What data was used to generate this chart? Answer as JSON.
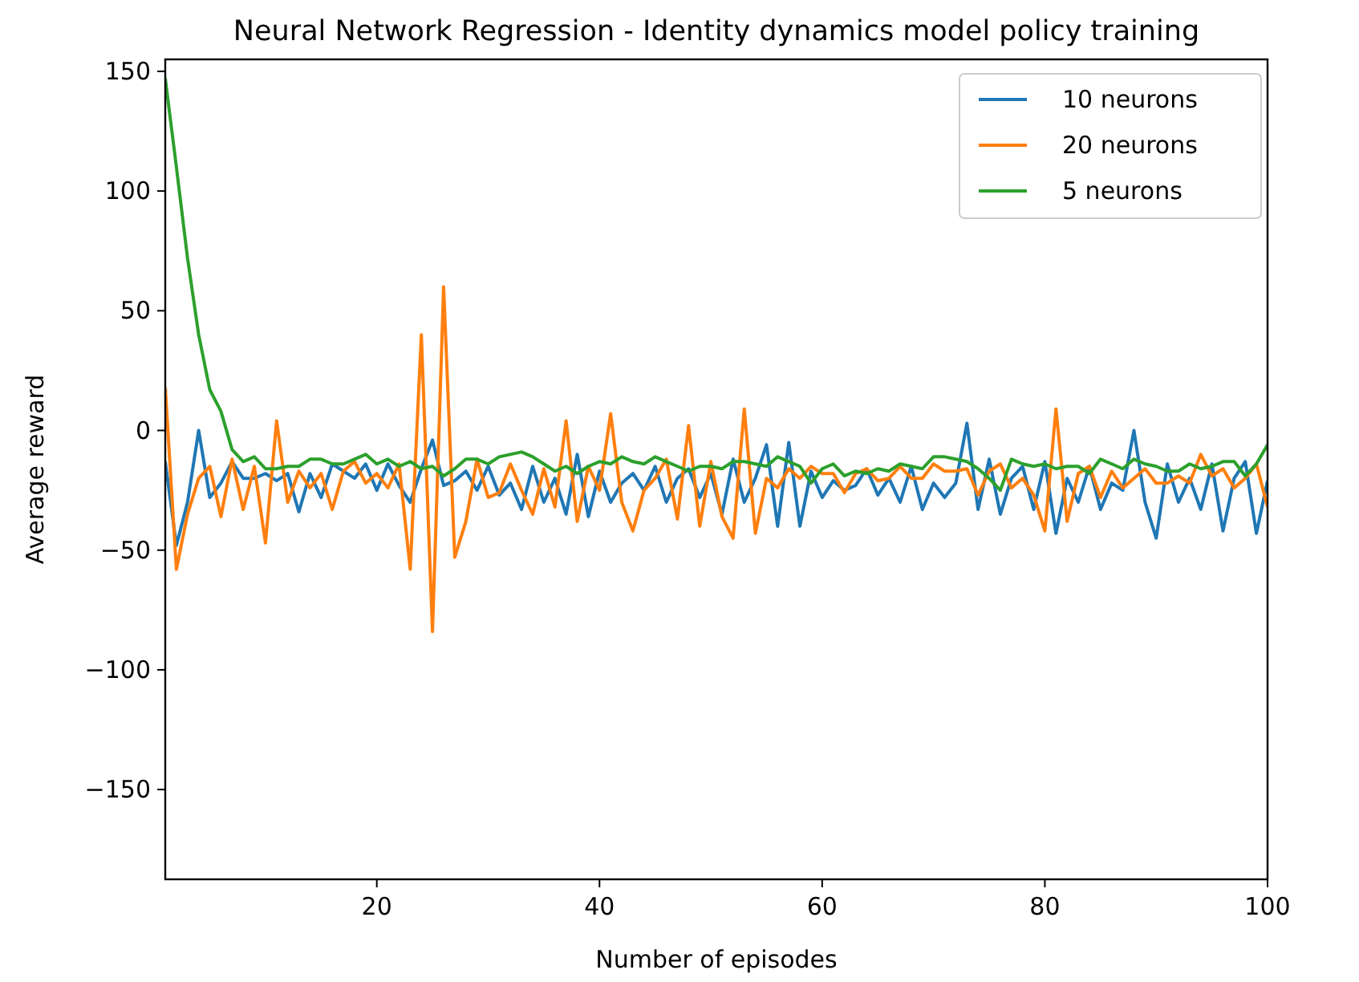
{
  "chart_data": {
    "type": "line",
    "title": "Neural Network Regression - Identity dynamics model policy training",
    "xlabel": "Number of episodes",
    "ylabel": "Average reward",
    "x": [
      1,
      2,
      3,
      4,
      5,
      6,
      7,
      8,
      9,
      10,
      11,
      12,
      13,
      14,
      15,
      16,
      17,
      18,
      19,
      20,
      21,
      22,
      23,
      24,
      25,
      26,
      27,
      28,
      29,
      30,
      31,
      32,
      33,
      34,
      35,
      36,
      37,
      38,
      39,
      40,
      41,
      42,
      43,
      44,
      45,
      46,
      47,
      48,
      49,
      50,
      51,
      52,
      53,
      54,
      55,
      56,
      57,
      58,
      59,
      60,
      61,
      62,
      63,
      64,
      65,
      66,
      67,
      68,
      69,
      70,
      71,
      72,
      73,
      74,
      75,
      76,
      77,
      78,
      79,
      80,
      81,
      82,
      83,
      84,
      85,
      86,
      87,
      88,
      89,
      90,
      91,
      92,
      93,
      94,
      95,
      96,
      97,
      98,
      99,
      100
    ],
    "xlim": [
      1,
      100
    ],
    "xticks": [
      20,
      40,
      60,
      80,
      100
    ],
    "ylim": [
      -187.5,
      155
    ],
    "yticks": [
      -150,
      -100,
      -50,
      0,
      50,
      100,
      150
    ],
    "grid": false,
    "legend": "top right",
    "line_style": "solid",
    "marker": "none",
    "series": [
      {
        "name": "10 neurons",
        "color": "#1f77b4",
        "values": [
          -13,
          -48,
          -30,
          0,
          -28,
          -22,
          -13,
          -20,
          -20,
          -18,
          -21,
          -18,
          -34,
          -18,
          -28,
          -14,
          -17,
          -20,
          -14,
          -25,
          -14,
          -23,
          -30,
          -16,
          -4,
          -23,
          -21,
          -17,
          -25,
          -15,
          -27,
          -22,
          -33,
          -15,
          -30,
          -20,
          -35,
          -10,
          -36,
          -17,
          -30,
          -22,
          -18,
          -25,
          -15,
          -30,
          -20,
          -16,
          -28,
          -18,
          -35,
          -12,
          -30,
          -20,
          -6,
          -40,
          -5,
          -40,
          -17,
          -28,
          -21,
          -25,
          -23,
          -16,
          -27,
          -20,
          -30,
          -15,
          -33,
          -22,
          -28,
          -22,
          3,
          -33,
          -12,
          -35,
          -20,
          -15,
          -33,
          -13,
          -43,
          -20,
          -30,
          -15,
          -33,
          -22,
          -25,
          0,
          -30,
          -45,
          -14,
          -30,
          -20,
          -33,
          -14,
          -42,
          -20,
          -13,
          -43,
          -21
        ]
      },
      {
        "name": "20 neurons",
        "color": "#ff7f0e",
        "values": [
          18,
          -58,
          -35,
          -20,
          -15,
          -36,
          -12,
          -33,
          -15,
          -47,
          4,
          -30,
          -17,
          -24,
          -18,
          -33,
          -17,
          -13,
          -22,
          -18,
          -24,
          -14,
          -58,
          40,
          -84,
          60,
          -53,
          -38,
          -12,
          -28,
          -26,
          -14,
          -25,
          -35,
          -16,
          -32,
          4,
          -38,
          -15,
          -25,
          7,
          -30,
          -42,
          -25,
          -20,
          -12,
          -37,
          2,
          -40,
          -13,
          -36,
          -45,
          9,
          -43,
          -20,
          -24,
          -16,
          -20,
          -15,
          -18,
          -18,
          -26,
          -18,
          -16,
          -21,
          -20,
          -15,
          -20,
          -20,
          -14,
          -17,
          -17,
          -16,
          -27,
          -17,
          -14,
          -24,
          -20,
          -27,
          -42,
          9,
          -38,
          -18,
          -15,
          -28,
          -17,
          -24,
          -20,
          -16,
          -22,
          -22,
          -19,
          -22,
          -10,
          -19,
          -16,
          -24,
          -20,
          -14,
          -32
        ]
      },
      {
        "name": "5 neurons",
        "color": "#2ca02c",
        "values": [
          147,
          110,
          72,
          40,
          17,
          8,
          -8,
          -13,
          -11,
          -16,
          -16,
          -15,
          -15,
          -12,
          -12,
          -14,
          -14,
          -12,
          -10,
          -14,
          -12,
          -15,
          -13,
          -16,
          -15,
          -19,
          -16,
          -12,
          -12,
          -14,
          -11,
          -10,
          -9,
          -11,
          -14,
          -17,
          -15,
          -18,
          -15,
          -13,
          -14,
          -11,
          -13,
          -14,
          -11,
          -13,
          -15,
          -17,
          -15,
          -15,
          -16,
          -13,
          -13,
          -14,
          -15,
          -11,
          -13,
          -15,
          -22,
          -16,
          -14,
          -19,
          -17,
          -18,
          -16,
          -17,
          -14,
          -15,
          -16,
          -11,
          -11,
          -12,
          -13,
          -16,
          -20,
          -25,
          -12,
          -14,
          -15,
          -14,
          -16,
          -15,
          -15,
          -18,
          -12,
          -14,
          -16,
          -12,
          -14,
          -15,
          -17,
          -17,
          -14,
          -16,
          -15,
          -13,
          -13,
          -19,
          -14,
          -6
        ]
      }
    ]
  }
}
